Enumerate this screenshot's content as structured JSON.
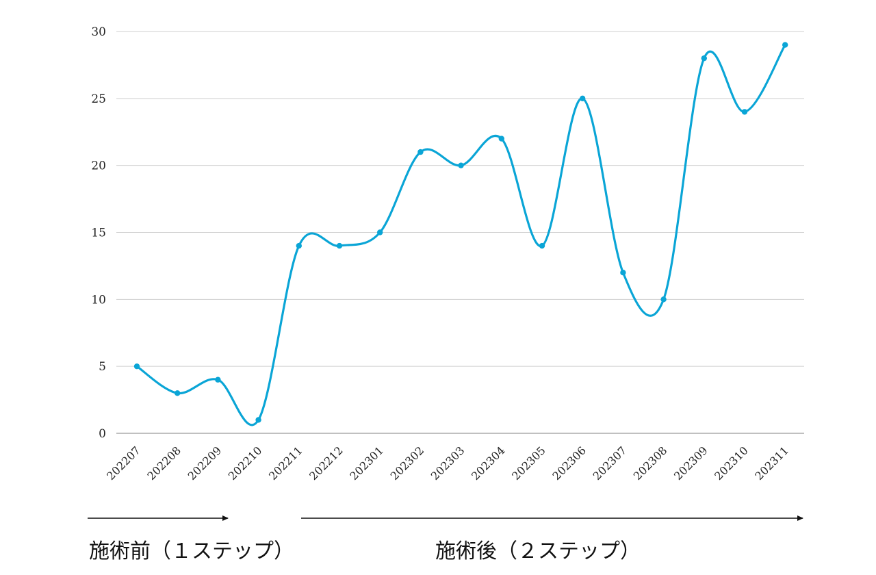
{
  "chart_data": {
    "type": "line",
    "title": "",
    "xlabel": "",
    "ylabel": "",
    "categories": [
      "202207",
      "202208",
      "202209",
      "202210",
      "202211",
      "202212",
      "202301",
      "202302",
      "202303",
      "202304",
      "202305",
      "202306",
      "202307",
      "202308",
      "202309",
      "202310",
      "202311"
    ],
    "series": [
      {
        "values": [
          5,
          3,
          4,
          1,
          14,
          14,
          15,
          21,
          20,
          22,
          14,
          25,
          12,
          10,
          28,
          24,
          29
        ],
        "color": "#0aa5d6",
        "smooth": true,
        "markers": true
      }
    ],
    "ylim": [
      0,
      30
    ],
    "yticks": [
      0,
      5,
      10,
      15,
      20,
      25,
      30
    ],
    "grid": true,
    "legend": "none",
    "annotations": [
      {
        "label": "施術前（１ステップ）",
        "from": "202207",
        "to": "202210"
      },
      {
        "label": "施術後（２ステップ）",
        "from": "202211",
        "to": "202311"
      }
    ]
  }
}
